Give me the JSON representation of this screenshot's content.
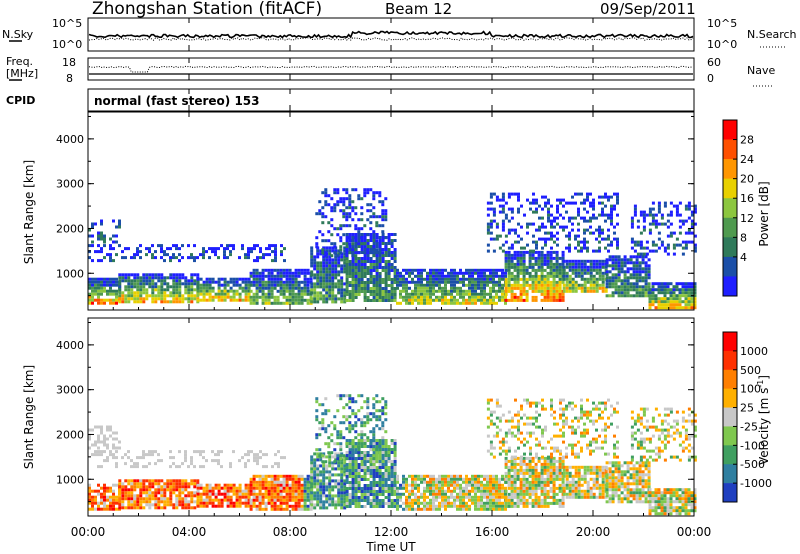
{
  "header": {
    "station": "Zhongshan Station (fitACF)",
    "beam": "Beam 12",
    "date": "09/Sep/2011"
  },
  "panels": {
    "nsky": {
      "left_label": "N.Sky",
      "right_label": "N.Search",
      "left_ticks": [
        "10^5",
        "10^0"
      ],
      "right_ticks": [
        "10^5",
        "10^0"
      ]
    },
    "freq": {
      "left_label_1": "Freq.",
      "left_label_2": "[MHz]",
      "right_label": "Nave",
      "left_ticks": [
        "18",
        "8"
      ],
      "right_ticks": [
        "60",
        "0"
      ]
    },
    "cpid": {
      "label": "CPID",
      "text": "normal (fast stereo) 153"
    }
  },
  "chart_data": [
    {
      "type": "heatmap",
      "title": "",
      "quantity": "Power",
      "ylabel": "Slant Range [km]",
      "ylim": [
        180,
        4600
      ],
      "yticks": [
        "1000",
        "2000",
        "3000",
        "4000"
      ],
      "xlabel": "",
      "xlim_hours": [
        0,
        24
      ],
      "colorbar": {
        "label": "Power [dB]",
        "range": [
          0,
          32
        ],
        "tick_values": [
          4,
          8,
          12,
          16,
          20,
          24,
          28
        ],
        "tick_labels": [
          "4",
          "8",
          "12",
          "16",
          "20",
          "24",
          "28"
        ],
        "colors": [
          "#1f1fff",
          "#1b4fa8",
          "#2f7a5a",
          "#4f9a4f",
          "#8cc63f",
          "#e8d000",
          "#ff9600",
          "#ff5000",
          "#ff0000"
        ]
      }
    },
    {
      "type": "heatmap",
      "title": "",
      "quantity": "Velocity",
      "ylabel": "Slant Range [km]",
      "ylim": [
        180,
        4600
      ],
      "yticks": [
        "1000",
        "2000",
        "3000",
        "4000"
      ],
      "xlabel": "Time UT",
      "xlim_hours": [
        0,
        24
      ],
      "xticks": [
        "00:00",
        "04:00",
        "08:00",
        "12:00",
        "16:00",
        "20:00",
        "00:00"
      ],
      "colorbar": {
        "label_main": "Velocity",
        "label_unit": "[m s",
        "label_exp": "-1",
        "label_close": "]",
        "tick_labels": [
          "1000",
          "500",
          "100",
          "25",
          "-25",
          "-100",
          "-500",
          "-1000"
        ],
        "colors": [
          "#1f3fc0",
          "#2f7fa0",
          "#3f9f60",
          "#7fc84f",
          "#c8c8c8",
          "#ffb000",
          "#ff7f00",
          "#ff3000",
          "#ff0000"
        ]
      }
    }
  ]
}
